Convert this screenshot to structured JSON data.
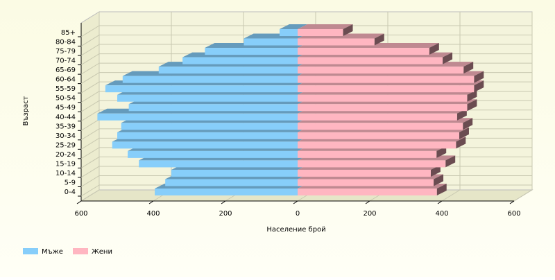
{
  "chart_data": {
    "type": "bar",
    "orientation": "horizontal",
    "stacked": false,
    "x_label": "Население брой",
    "y_label": "Възраст",
    "categories": [
      "0-4",
      "5-9",
      "10-14",
      "15-19",
      "20-24",
      "25-29",
      "30-34",
      "35-39",
      "40-44",
      "45-49",
      "50-54",
      "55-59",
      "60-64",
      "65-69",
      "70-74",
      "75-79",
      "80-84",
      "85+"
    ],
    "series": [
      {
        "name": "Мъже",
        "color": "#87cefa",
        "values": [
          -396,
          -367,
          -350,
          -440,
          -471,
          -514,
          -500,
          -489,
          -555,
          -468,
          -500,
          -533,
          -485,
          -385,
          -319,
          -257,
          -149,
          -50
        ]
      },
      {
        "name": "Жени",
        "color": "#ffb6c1",
        "values": [
          386,
          377,
          369,
          410,
          385,
          439,
          448,
          458,
          442,
          470,
          470,
          489,
          489,
          460,
          402,
          365,
          213,
          126
        ]
      }
    ],
    "xlim": [
      -600,
      600
    ],
    "xticks": [
      {
        "value": -600,
        "label": "600"
      },
      {
        "value": -400,
        "label": "400"
      },
      {
        "value": -200,
        "label": "200"
      },
      0,
      200,
      400,
      600
    ],
    "grid": true,
    "legend": "bottom-left"
  }
}
